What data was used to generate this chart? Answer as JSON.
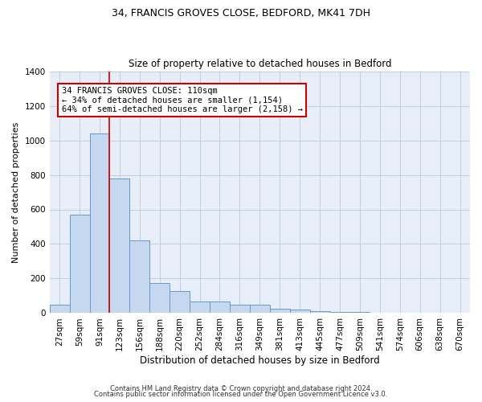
{
  "title": "34, FRANCIS GROVES CLOSE, BEDFORD, MK41 7DH",
  "subtitle": "Size of property relative to detached houses in Bedford",
  "xlabel": "Distribution of detached houses by size in Bedford",
  "ylabel": "Number of detached properties",
  "bar_color": "#c5d8ef",
  "bar_edge_color": "#6699cc",
  "background_color": "#e8eef7",
  "categories": [
    "27sqm",
    "59sqm",
    "91sqm",
    "123sqm",
    "156sqm",
    "188sqm",
    "220sqm",
    "252sqm",
    "284sqm",
    "316sqm",
    "349sqm",
    "381sqm",
    "413sqm",
    "445sqm",
    "477sqm",
    "509sqm",
    "541sqm",
    "574sqm",
    "606sqm",
    "638sqm",
    "670sqm"
  ],
  "values": [
    50,
    570,
    1040,
    780,
    420,
    175,
    130,
    65,
    65,
    50,
    50,
    25,
    20,
    10,
    5,
    5,
    0,
    0,
    0,
    0,
    0
  ],
  "ylim": [
    0,
    1400
  ],
  "yticks": [
    0,
    200,
    400,
    600,
    800,
    1000,
    1200,
    1400
  ],
  "red_line_x": 2.5,
  "annotation_text": "34 FRANCIS GROVES CLOSE: 110sqm\n← 34% of detached houses are smaller (1,154)\n64% of semi-detached houses are larger (2,158) →",
  "annotation_box_color": "#ffffff",
  "annotation_box_edge_color": "#cc0000",
  "red_line_color": "#cc0000",
  "footnote1": "Contains HM Land Registry data © Crown copyright and database right 2024.",
  "footnote2": "Contains public sector information licensed under the Open Government Licence v3.0."
}
